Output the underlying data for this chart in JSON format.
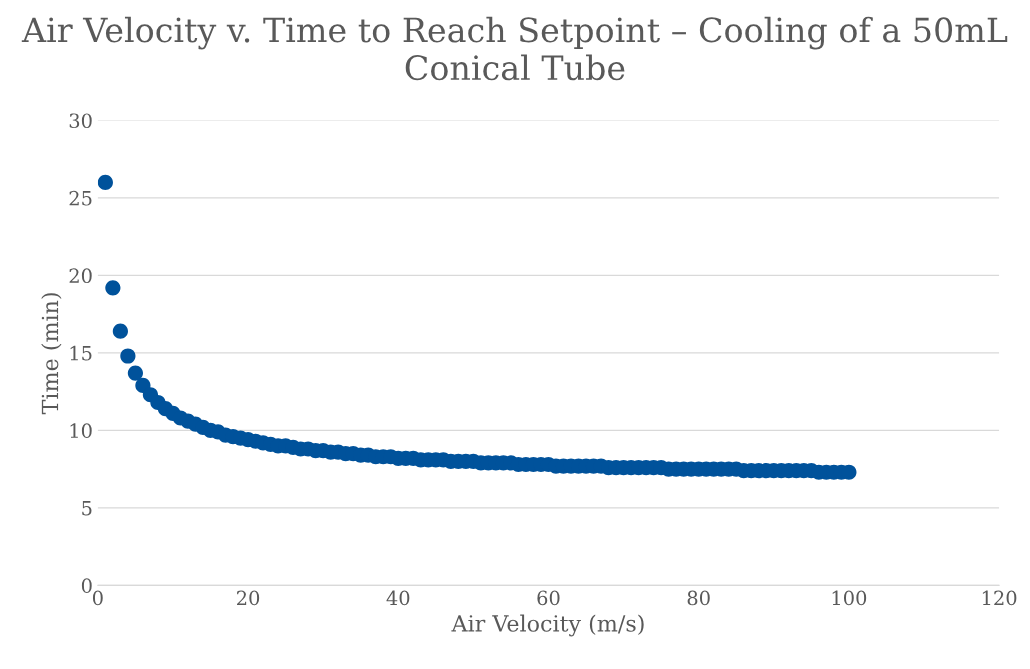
{
  "chart_data": {
    "type": "scatter",
    "title": "Air Velocity v. Time to Reach Setpoint – Cooling of a 50mL Conical Tube",
    "xlabel": "Air Velocity (m/s)",
    "ylabel": "Time (min)",
    "x": [
      1,
      2,
      3,
      4,
      5,
      6,
      7,
      8,
      9,
      10,
      11,
      12,
      13,
      14,
      15,
      16,
      17,
      18,
      19,
      20,
      21,
      22,
      23,
      24,
      25,
      26,
      27,
      28,
      29,
      30,
      31,
      32,
      33,
      34,
      35,
      36,
      37,
      38,
      39,
      40,
      41,
      42,
      43,
      44,
      45,
      46,
      47,
      48,
      49,
      50,
      51,
      52,
      53,
      54,
      55,
      56,
      57,
      58,
      59,
      60,
      61,
      62,
      63,
      64,
      65,
      66,
      67,
      68,
      69,
      70,
      71,
      72,
      73,
      74,
      75,
      76,
      77,
      78,
      79,
      80,
      81,
      82,
      83,
      84,
      85,
      86,
      87,
      88,
      89,
      90,
      91,
      92,
      93,
      94,
      95,
      96,
      97,
      98,
      99,
      100
    ],
    "values": [
      26.0,
      19.2,
      16.4,
      14.8,
      13.7,
      12.9,
      12.3,
      11.8,
      11.4,
      11.1,
      10.8,
      10.6,
      10.4,
      10.2,
      10.0,
      9.9,
      9.7,
      9.6,
      9.5,
      9.4,
      9.3,
      9.2,
      9.1,
      9.0,
      9.0,
      8.9,
      8.8,
      8.8,
      8.7,
      8.7,
      8.6,
      8.6,
      8.5,
      8.5,
      8.4,
      8.4,
      8.3,
      8.3,
      8.3,
      8.2,
      8.2,
      8.2,
      8.1,
      8.1,
      8.1,
      8.1,
      8.0,
      8.0,
      8.0,
      8.0,
      7.9,
      7.9,
      7.9,
      7.9,
      7.9,
      7.8,
      7.8,
      7.8,
      7.8,
      7.8,
      7.7,
      7.7,
      7.7,
      7.7,
      7.7,
      7.7,
      7.7,
      7.6,
      7.6,
      7.6,
      7.6,
      7.6,
      7.6,
      7.6,
      7.6,
      7.5,
      7.5,
      7.5,
      7.5,
      7.5,
      7.5,
      7.5,
      7.5,
      7.5,
      7.5,
      7.4,
      7.4,
      7.4,
      7.4,
      7.4,
      7.4,
      7.4,
      7.4,
      7.4,
      7.4,
      7.3,
      7.3,
      7.3,
      7.3,
      7.3
    ],
    "color": "#00529b",
    "marker": "circle",
    "xlim": [
      0,
      120
    ],
    "ylim": [
      0,
      30
    ],
    "xticks": [
      0,
      20,
      40,
      60,
      80,
      100,
      120
    ],
    "yticks": [
      0,
      5,
      10,
      15,
      20,
      25,
      30
    ],
    "grid": "y"
  }
}
